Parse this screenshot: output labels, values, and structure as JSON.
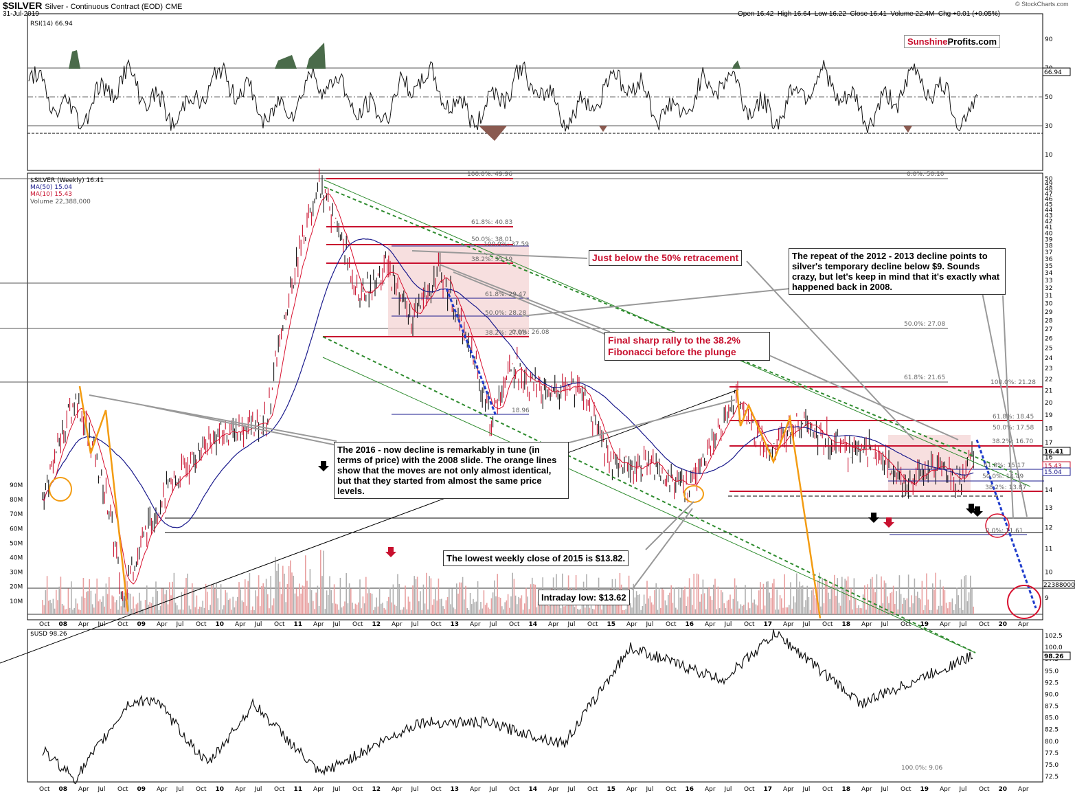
{
  "header": {
    "symbol": "$SILVER",
    "name": "Silver - Continuous Contract (EOD)",
    "exchange": "CME",
    "date": "31-Jul-2019",
    "ohlc": "Open 16.42  High 16.64  Low 16.22  Close 16.41  Volume 22.4M  Chg +0.01 (+0.05%)",
    "credit": "© StockCharts.com",
    "logo_a": "Sunshine",
    "logo_b": "Profits.com"
  },
  "rsi_panel": {
    "label": "RSI(14) 66.94",
    "ticks": [
      "90",
      "70",
      "50",
      "30",
      "10"
    ],
    "last": "66.94"
  },
  "price_panel": {
    "legend": [
      "$SILVER (Weekly) 16.41",
      "MA(50) 15.04",
      "MA(10) 15.43",
      "Volume 22,388,000"
    ],
    "price_ticks": [
      "50",
      "49",
      "48",
      "47",
      "46",
      "45",
      "44",
      "43",
      "42",
      "41",
      "40",
      "39",
      "38",
      "37",
      "36",
      "35",
      "34",
      "33",
      "32",
      "31",
      "30",
      "29",
      "28",
      "27",
      "26",
      "25",
      "24",
      "23",
      "22",
      "21",
      "20",
      "19",
      "18",
      "17",
      "16",
      "15",
      "14",
      "13",
      "12",
      "11",
      "10",
      "9"
    ],
    "volume_ticks": [
      "90M",
      "80M",
      "70M",
      "60M",
      "50M",
      "40M",
      "30M",
      "20M",
      "10M"
    ],
    "last_price": "16.41",
    "ma10": "15.43",
    "ma50": "15.04",
    "volume_last": "22388000",
    "fib": [
      "100.0%: 49.96",
      "61.8%: 40.83",
      "50.0%: 38.01",
      "38.2%: 35.19",
      "0.0%: 50.10",
      "50.0%: 27.08",
      "61.8%: 21.65",
      "100.0%: 21.28",
      "61.8%: 18.45",
      "50.0%: 17.58",
      "38.2%: 16.70",
      "61.8%: 15.17",
      "50.0%: 14.49",
      "38.2%: 13.87",
      "0.0%: 11.61",
      "100.0%: 37.59",
      "61.8%: 29.47",
      "50.0%: 28.28",
      "38.2%: 27.08",
      "0.0%: 26.08",
      "18.96",
      "100.0%: 9.06"
    ]
  },
  "usd_panel": {
    "label": "$USD 98.26",
    "ticks": [
      "102.5",
      "100.0",
      "97.5",
      "95.0",
      "92.5",
      "90.0",
      "87.5",
      "85.0",
      "82.5",
      "80.0",
      "77.5",
      "75.0",
      "72.5"
    ],
    "last": "98.26"
  },
  "x_axis": {
    "top": [
      "Oct",
      "08",
      "Apr",
      "Jul",
      "Oct",
      "09",
      "Apr",
      "Jul",
      "Oct",
      "10",
      "Apr",
      "Jul",
      "Oct",
      "11",
      "Apr",
      "Jul",
      "Oct",
      "12",
      "Apr",
      "Jul",
      "Oct",
      "13",
      "Apr",
      "Jul",
      "Oct",
      "14",
      "Apr",
      "Jul",
      "Oct",
      "15",
      "Apr",
      "Jul",
      "Oct",
      "16",
      "Apr",
      "Jul",
      "Oct",
      "17",
      "Apr",
      "Jul",
      "Oct",
      "18",
      "Apr",
      "Jul",
      "Oct",
      "19",
      "Apr",
      "Jul",
      "Oct",
      "20",
      "Apr"
    ]
  },
  "annotations": {
    "retracement": "Just below the 50% retracement",
    "repeat": "The repeat of the 2012 - 2013 decline points to silver's temporary decline below $9. Sounds crazy, but let's keep in mind that it's exactly what happened back in 2008.",
    "final_rally": "Final sharp rally to the 38.2% Fibonacci before the plunge",
    "decline_2016": "The 2016 - now decline is remarkably in tune (in terms of price) with the 2008 slide. The orange lines show that the moves are not only almost identical, but that they started from almost the same price levels.",
    "lowest_close": "The lowest weekly close of 2015 is $13.82.",
    "intraday_low": "Intraday low: $13.62"
  },
  "colors": {
    "price_bar": "#c8102e",
    "ma50": "#1a1a8c",
    "ma10": "#d8102e",
    "volume": "#e8a0a0",
    "fib": "#c8102e",
    "trend": "#2e8b2e",
    "orange": "#f39c12",
    "blue_dash": "#1f3ccc",
    "rsi_over": "#4a6b4a",
    "rsi_under": "#8a5a50"
  },
  "chart_data": [
    {
      "type": "line",
      "title": "$SILVER Silver - Continuous Contract (EOD) CME",
      "series": [
        {
          "name": "$SILVER (Weekly)",
          "x": [
            "2007-10",
            "2008-03",
            "2008-08",
            "2008-10",
            "2009-04",
            "2009-12",
            "2010-08",
            "2011-04",
            "2011-10",
            "2012-02",
            "2012-06",
            "2012-10",
            "2013-06",
            "2013-09",
            "2014-02",
            "2014-07",
            "2014-12",
            "2015-06",
            "2015-12",
            "2016-07",
            "2016-12",
            "2017-04",
            "2017-12",
            "2018-04",
            "2018-09",
            "2019-01",
            "2019-05",
            "2019-07"
          ],
          "values": [
            13.5,
            20.5,
            13.0,
            9.0,
            13.5,
            17.5,
            18.5,
            48.5,
            30.5,
            35.0,
            27.5,
            34.5,
            18.5,
            23.5,
            20.5,
            21.5,
            15.5,
            15.5,
            13.8,
            20.5,
            16.0,
            18.5,
            16.5,
            16.5,
            14.2,
            15.5,
            14.5,
            16.41
          ]
        },
        {
          "name": "MA(50)",
          "values": [
            15.04
          ]
        },
        {
          "name": "MA(10)",
          "values": [
            15.43
          ]
        }
      ],
      "ylim": [
        8,
        50
      ]
    },
    {
      "type": "line",
      "title": "RSI(14)",
      "series": [
        {
          "name": "RSI(14)",
          "values": [
            66.94
          ]
        }
      ],
      "ylim": [
        0,
        100
      ]
    },
    {
      "type": "line",
      "title": "$USD",
      "series": [
        {
          "name": "$USD",
          "x": [
            "2007-10",
            "2008-03",
            "2008-11",
            "2009-03",
            "2009-11",
            "2010-06",
            "2011-04",
            "2012-07",
            "2013-05",
            "2014-05",
            "2015-03",
            "2016-05",
            "2017-01",
            "2018-02",
            "2019-07"
          ],
          "values": [
            78.0,
            72.0,
            88.0,
            89.0,
            75.0,
            88.0,
            73.0,
            84.0,
            84.0,
            79.5,
            100.0,
            93.0,
            103.0,
            88.0,
            98.26
          ]
        }
      ],
      "ylim": [
        72.5,
        102.5
      ]
    }
  ]
}
